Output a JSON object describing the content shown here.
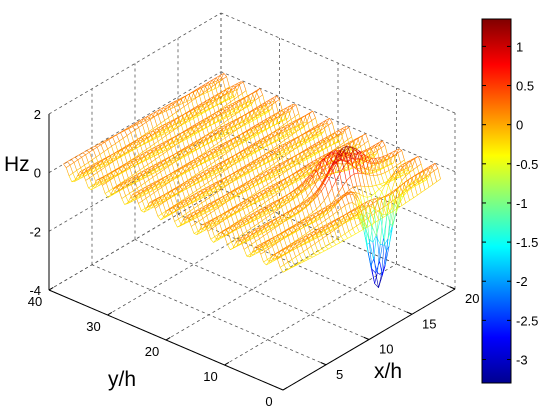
{
  "chart_data": {
    "type": "surface",
    "title": "",
    "xlabel": "x/h",
    "ylabel": "y/h",
    "zlabel": "Hz",
    "xlim": [
      0,
      20
    ],
    "ylim": [
      0,
      40
    ],
    "zlim": [
      -4,
      2
    ],
    "x_ticks": [
      "5",
      "10",
      "15",
      "20"
    ],
    "y_ticks": [
      "0",
      "10",
      "20",
      "30",
      "40"
    ],
    "z_ticks": [
      "2",
      "0",
      "-2",
      "-4"
    ],
    "grid": true,
    "colormap": "jet",
    "colorbar": {
      "range": [
        -3.3,
        1.35
      ],
      "ticks": [
        "1",
        "0.5",
        "0",
        "-0.5",
        "-1",
        "-1.5",
        "-2",
        "-2.5",
        "-3"
      ],
      "location": "right"
    },
    "surface": {
      "description_values": {
        "baseline_z": 0.0,
        "ripple_amplitude": 0.35,
        "ripple_period_y": 3.0,
        "peak": {
          "x": 13,
          "y": 9,
          "z": 1.35
        },
        "trough": {
          "x": 14,
          "y": 4.5,
          "z": -3.3
        }
      }
    }
  }
}
